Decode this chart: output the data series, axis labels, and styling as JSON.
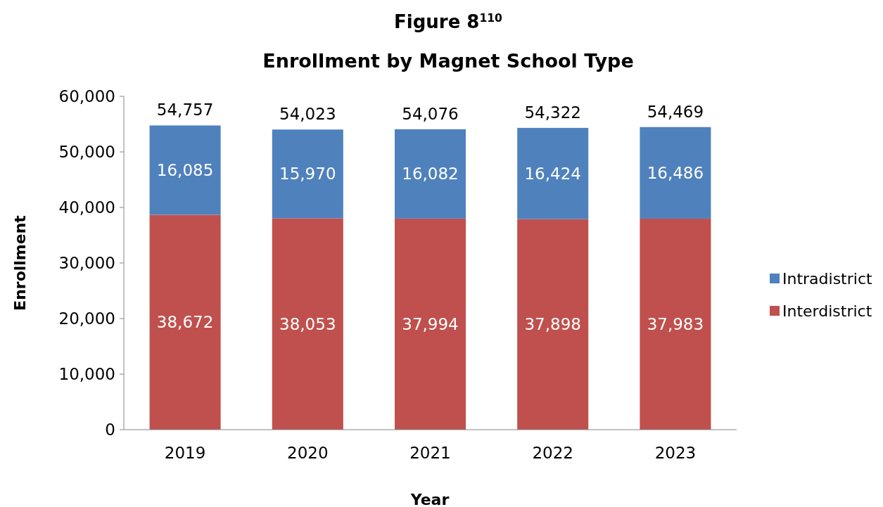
{
  "chart_data": {
    "type": "bar",
    "title": "Figure 8$^{110}$",
    "subtitle": "Enrollment by Magnet School Type",
    "xlabel": "Year",
    "ylabel": "Enrollment",
    "categories": [
      "2019",
      "2020",
      "2021",
      "2022",
      "2023"
    ],
    "series": [
      {
        "name": "Interdistrict",
        "color": "#c0504d",
        "values": [
          38672,
          38053,
          37994,
          37898,
          37983
        ],
        "value_labels": [
          "38,672",
          "38,053",
          "37,994",
          "37,898",
          "37,983"
        ]
      },
      {
        "name": "Intradistrict",
        "color": "#4f81bd",
        "values": [
          16085,
          15970,
          16082,
          16424,
          16486
        ],
        "value_labels": [
          "16,085",
          "15,970",
          "16,082",
          "16,424",
          "16,486"
        ]
      }
    ],
    "stacked": true,
    "totals": [
      "54,757",
      "54,023",
      "54,076",
      "54,322",
      "54,469"
    ],
    "ylim": [
      0,
      60000
    ],
    "yticks": [
      {
        "value": 0,
        "label": "0"
      },
      {
        "value": 10000,
        "label": "10,000"
      },
      {
        "value": 20000,
        "label": "20,000"
      },
      {
        "value": 30000,
        "label": "30,000"
      },
      {
        "value": 40000,
        "label": "40,000"
      },
      {
        "value": 50000,
        "label": "50,000"
      },
      {
        "value": 60000,
        "label": "60,000"
      }
    ],
    "grid": false,
    "legend": "right"
  }
}
